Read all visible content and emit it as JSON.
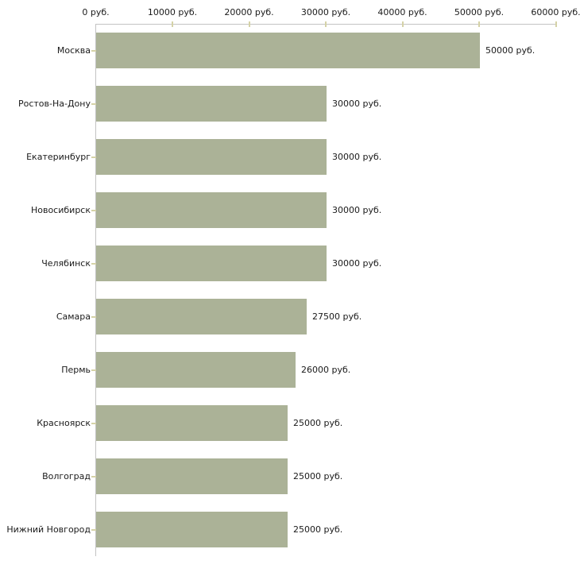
{
  "chart_data": {
    "type": "bar",
    "orientation": "horizontal",
    "title": "",
    "xlabel": "",
    "ylabel": "",
    "xlim": [
      0,
      60000
    ],
    "x_tick_step": 10000,
    "x_tick_labels": [
      "0 руб.",
      "10000 руб.",
      "20000 руб.",
      "30000 руб.",
      "40000 руб.",
      "50000 руб.",
      "60000 руб."
    ],
    "categories": [
      "Москва",
      "Ростов-На-Дону",
      "Екатеринбург",
      "Новосибирск",
      "Челябинск",
      "Самара",
      "Пермь",
      "Красноярск",
      "Волгоград",
      "Нижний Новгород"
    ],
    "values": [
      50000,
      30000,
      30000,
      30000,
      30000,
      27500,
      26000,
      25000,
      25000,
      25000
    ],
    "value_labels": [
      "50000 руб.",
      "30000 руб.",
      "30000 руб.",
      "30000 руб.",
      "30000 руб.",
      "27500 руб.",
      "26000 руб.",
      "25000 руб.",
      "25000 руб.",
      "25000 руб."
    ],
    "grid": "off",
    "legend": "none",
    "colors": {
      "bar": "#abb297",
      "axis_line": "#c3c3c3",
      "tick_mark": "#d5d2a7",
      "text": "#1a1a1a",
      "background": "#ffffff"
    }
  }
}
